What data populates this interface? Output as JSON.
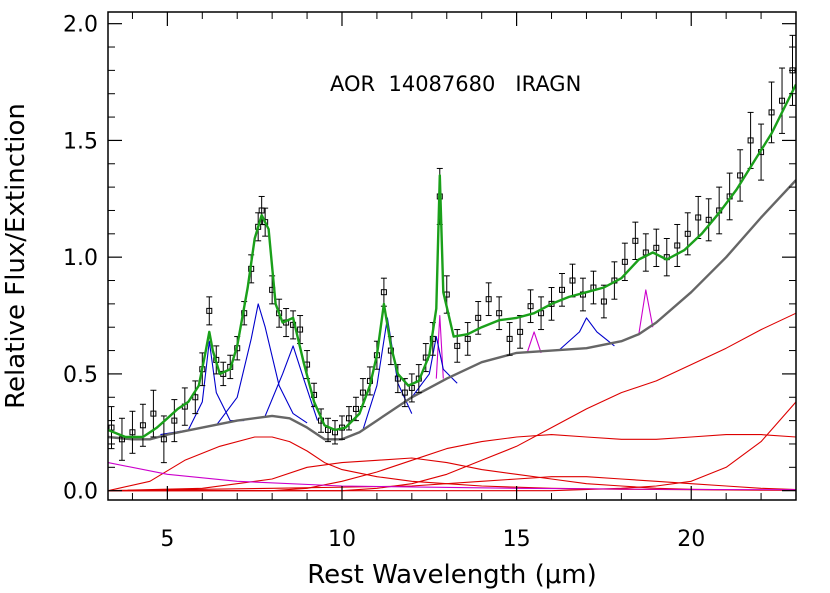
{
  "chart_data": {
    "type": "line",
    "title": "",
    "annotation": "AOR  14087680   IRAGN",
    "xlabel": "Rest Wavelength (μm)",
    "ylabel": "Relative Flux/Extinction",
    "xlim": [
      3.3,
      23.0
    ],
    "ylim": [
      -0.04,
      2.05
    ],
    "x_ticks": [
      5,
      10,
      15,
      20
    ],
    "x_tick_labels": [
      "5",
      "10",
      "15",
      "20"
    ],
    "y_ticks": [
      0.0,
      0.5,
      1.0,
      1.5,
      2.0
    ],
    "y_tick_labels": [
      "0.0",
      "0.5",
      "1.0",
      "1.5",
      "2.0"
    ],
    "grid": false,
    "legend": "none",
    "colors": {
      "data": "#000000",
      "model": "#1aa01a",
      "continuum_total": "#666666",
      "pah_features": "#0000cc",
      "lines": "#cc00cc",
      "dust_components": "#dd0000"
    },
    "series": [
      {
        "role": "model",
        "x": [
          3.3,
          3.8,
          4.3,
          4.7,
          5.0,
          5.3,
          5.6,
          5.9,
          6.1,
          6.2,
          6.3,
          6.5,
          6.8,
          7.0,
          7.3,
          7.5,
          7.7,
          7.9,
          8.1,
          8.3,
          8.6,
          8.9,
          9.2,
          9.5,
          9.8,
          10.1,
          10.5,
          10.8,
          11.0,
          11.2,
          11.4,
          11.6,
          11.9,
          12.2,
          12.5,
          12.7,
          12.8,
          12.9,
          13.2,
          13.6,
          14.0,
          14.5,
          15.0,
          15.5,
          16.0,
          16.5,
          17.0,
          17.5,
          18.0,
          18.5,
          18.9,
          19.3,
          19.8,
          20.3,
          20.8,
          21.3,
          21.8,
          22.3,
          22.7,
          23.0
        ],
        "y": [
          0.26,
          0.23,
          0.23,
          0.27,
          0.31,
          0.35,
          0.38,
          0.45,
          0.6,
          0.68,
          0.6,
          0.5,
          0.52,
          0.62,
          0.87,
          1.08,
          1.18,
          1.12,
          0.8,
          0.72,
          0.74,
          0.55,
          0.38,
          0.28,
          0.26,
          0.27,
          0.33,
          0.45,
          0.58,
          0.8,
          0.62,
          0.5,
          0.45,
          0.47,
          0.58,
          0.78,
          1.35,
          0.85,
          0.66,
          0.67,
          0.7,
          0.73,
          0.74,
          0.76,
          0.8,
          0.83,
          0.85,
          0.87,
          0.91,
          0.99,
          1.02,
          0.99,
          1.03,
          1.1,
          1.19,
          1.29,
          1.41,
          1.53,
          1.65,
          1.74
        ]
      },
      {
        "role": "continuum_total",
        "x": [
          3.3,
          4.0,
          4.5,
          5.0,
          6.0,
          7.0,
          8.0,
          8.5,
          9.0,
          9.5,
          10.0,
          10.5,
          11.0,
          12.0,
          13.0,
          14.0,
          15.0,
          16.0,
          17.0,
          18.0,
          18.5,
          19.0,
          20.0,
          21.0,
          22.0,
          23.0
        ],
        "y": [
          0.23,
          0.22,
          0.22,
          0.24,
          0.27,
          0.3,
          0.32,
          0.31,
          0.27,
          0.22,
          0.22,
          0.25,
          0.3,
          0.4,
          0.48,
          0.55,
          0.59,
          0.6,
          0.61,
          0.64,
          0.67,
          0.72,
          0.85,
          1.0,
          1.17,
          1.33
        ]
      },
      {
        "role": "pah_profile",
        "name": "6.2 um",
        "x": [
          4.8,
          5.6,
          6.0,
          6.2,
          6.4,
          6.8,
          7.2
        ],
        "y": [
          0.24,
          0.26,
          0.38,
          0.64,
          0.42,
          0.3,
          0.3
        ]
      },
      {
        "role": "pah_profile",
        "name": "7.7 um",
        "x": [
          6.4,
          7.0,
          7.4,
          7.6,
          7.8,
          8.2,
          8.6,
          9.0
        ],
        "y": [
          0.28,
          0.4,
          0.65,
          0.8,
          0.7,
          0.45,
          0.33,
          0.29
        ]
      },
      {
        "role": "pah_profile",
        "name": "8.6 um",
        "x": [
          7.8,
          8.3,
          8.6,
          8.9,
          9.3
        ],
        "y": [
          0.32,
          0.5,
          0.62,
          0.48,
          0.3
        ]
      },
      {
        "role": "pah_profile",
        "name": "11.3 um",
        "x": [
          10.6,
          11.0,
          11.3,
          11.6,
          12.0
        ],
        "y": [
          0.26,
          0.45,
          0.74,
          0.46,
          0.33
        ]
      },
      {
        "role": "pah_profile",
        "name": "12.7 um",
        "x": [
          12.0,
          12.5,
          12.7,
          12.9,
          13.3
        ],
        "y": [
          0.4,
          0.5,
          0.66,
          0.52,
          0.46
        ]
      },
      {
        "role": "pah_profile",
        "name": "17 um",
        "x": [
          16.2,
          16.8,
          17.0,
          17.3,
          17.8
        ],
        "y": [
          0.6,
          0.68,
          0.74,
          0.68,
          0.62
        ]
      },
      {
        "role": "line",
        "name": "12.8 um line",
        "x": [
          12.7,
          12.8,
          12.9
        ],
        "y": [
          0.48,
          0.75,
          0.48
        ]
      },
      {
        "role": "line",
        "name": "15.5 um line",
        "x": [
          15.3,
          15.5,
          15.7
        ],
        "y": [
          0.59,
          0.68,
          0.59
        ]
      },
      {
        "role": "line",
        "name": "18.7 um line",
        "x": [
          18.5,
          18.7,
          18.9
        ],
        "y": [
          0.67,
          0.86,
          0.7
        ]
      },
      {
        "role": "line",
        "name": "stellar",
        "x": [
          3.3,
          5.0,
          7.0,
          10.0,
          15.0,
          20.0,
          23.0
        ],
        "y": [
          0.12,
          0.07,
          0.04,
          0.02,
          0.01,
          0.005,
          0.004
        ]
      },
      {
        "role": "dust_component",
        "x": [
          3.3,
          4.5,
          5.5,
          6.5,
          7.5,
          8.0,
          8.5,
          9.0,
          9.5,
          10.0,
          11.0,
          12.0,
          13.0,
          14.0,
          15.0,
          16.0,
          17.0,
          18.0,
          19.0,
          20.0,
          21.0,
          22.0,
          23.0
        ],
        "y": [
          0.0,
          0.04,
          0.13,
          0.19,
          0.23,
          0.23,
          0.21,
          0.17,
          0.12,
          0.09,
          0.06,
          0.04,
          0.03,
          0.02,
          0.015,
          0.01,
          0.008,
          0.006,
          0.005,
          0.004,
          0.003,
          0.002,
          0.002
        ]
      },
      {
        "role": "dust_component",
        "x": [
          3.3,
          6.0,
          8.0,
          9.0,
          10.0,
          11.0,
          12.0,
          13.0,
          14.0,
          15.0,
          16.0,
          17.0,
          18.0,
          19.0,
          20.0,
          21.0,
          22.0,
          23.0
        ],
        "y": [
          0.0,
          0.01,
          0.05,
          0.1,
          0.12,
          0.13,
          0.14,
          0.12,
          0.09,
          0.07,
          0.05,
          0.03,
          0.02,
          0.01,
          0.006,
          0.004,
          0.003,
          0.002
        ]
      },
      {
        "role": "dust_component",
        "x": [
          3.3,
          8.0,
          9.0,
          10.0,
          11.0,
          12.0,
          13.0,
          14.0,
          15.0,
          16.0,
          17.0,
          18.0,
          19.0,
          20.0,
          21.0,
          22.0,
          23.0
        ],
        "y": [
          0.0,
          0.0,
          0.01,
          0.04,
          0.08,
          0.13,
          0.18,
          0.21,
          0.23,
          0.24,
          0.23,
          0.22,
          0.22,
          0.23,
          0.24,
          0.24,
          0.23
        ]
      },
      {
        "role": "dust_component",
        "x": [
          3.3,
          8.0,
          10.0,
          11.0,
          12.0,
          13.0,
          14.0,
          15.0,
          16.0,
          17.0,
          18.0,
          19.0,
          20.0,
          21.0,
          22.0,
          23.0
        ],
        "y": [
          0.0,
          0.0,
          0.0,
          0.01,
          0.03,
          0.07,
          0.13,
          0.19,
          0.27,
          0.35,
          0.42,
          0.47,
          0.54,
          0.61,
          0.69,
          0.76
        ]
      },
      {
        "role": "dust_component",
        "x": [
          3.3,
          12.0,
          14.0,
          16.0,
          18.0,
          19.0,
          20.0,
          21.0,
          22.0,
          23.0
        ],
        "y": [
          0.0,
          0.0,
          0.0,
          0.0,
          0.01,
          0.02,
          0.04,
          0.1,
          0.21,
          0.38
        ]
      },
      {
        "role": "dust_component",
        "x": [
          3.3,
          8.0,
          12.0,
          14.0,
          15.0,
          16.0,
          17.0,
          18.0,
          19.0,
          20.0,
          21.0,
          22.0,
          23.0
        ],
        "y": [
          0.0,
          0.01,
          0.02,
          0.04,
          0.05,
          0.06,
          0.06,
          0.05,
          0.04,
          0.03,
          0.02,
          0.01,
          0.005
        ]
      }
    ],
    "data_points": {
      "x": [
        3.4,
        3.7,
        4.0,
        4.3,
        4.6,
        4.9,
        5.2,
        5.5,
        5.8,
        6.0,
        6.2,
        6.4,
        6.6,
        6.8,
        7.0,
        7.2,
        7.4,
        7.6,
        7.7,
        7.8,
        8.0,
        8.2,
        8.4,
        8.6,
        8.8,
        9.0,
        9.2,
        9.4,
        9.6,
        9.8,
        10.0,
        10.2,
        10.4,
        10.6,
        10.8,
        11.0,
        11.2,
        11.4,
        11.6,
        11.8,
        12.0,
        12.2,
        12.4,
        12.6,
        12.8,
        13.0,
        13.3,
        13.6,
        13.9,
        14.2,
        14.5,
        14.8,
        15.1,
        15.4,
        15.7,
        16.0,
        16.3,
        16.6,
        16.9,
        17.2,
        17.5,
        17.8,
        18.1,
        18.4,
        18.7,
        19.0,
        19.3,
        19.6,
        19.9,
        20.2,
        20.5,
        20.8,
        21.1,
        21.4,
        21.7,
        22.0,
        22.3,
        22.6,
        22.9
      ],
      "y": [
        0.27,
        0.22,
        0.25,
        0.28,
        0.33,
        0.22,
        0.3,
        0.36,
        0.4,
        0.52,
        0.77,
        0.56,
        0.5,
        0.53,
        0.61,
        0.76,
        0.95,
        1.13,
        1.2,
        1.15,
        0.86,
        0.76,
        0.72,
        0.71,
        0.69,
        0.54,
        0.41,
        0.3,
        0.26,
        0.25,
        0.27,
        0.31,
        0.35,
        0.42,
        0.47,
        0.58,
        0.85,
        0.6,
        0.48,
        0.42,
        0.44,
        0.48,
        0.57,
        0.65,
        1.26,
        0.84,
        0.62,
        0.65,
        0.74,
        0.82,
        0.76,
        0.65,
        0.68,
        0.79,
        0.76,
        0.8,
        0.86,
        0.9,
        0.84,
        0.87,
        0.81,
        0.9,
        0.98,
        1.07,
        1.02,
        1.04,
        1.0,
        1.05,
        1.1,
        1.17,
        1.16,
        1.2,
        1.26,
        1.35,
        1.5,
        1.45,
        1.62,
        1.67,
        1.8
      ],
      "err": [
        0.09,
        0.09,
        0.09,
        0.09,
        0.1,
        0.1,
        0.09,
        0.08,
        0.07,
        0.07,
        0.06,
        0.06,
        0.05,
        0.05,
        0.05,
        0.05,
        0.06,
        0.06,
        0.06,
        0.06,
        0.06,
        0.06,
        0.06,
        0.06,
        0.06,
        0.06,
        0.05,
        0.05,
        0.05,
        0.05,
        0.05,
        0.05,
        0.05,
        0.06,
        0.06,
        0.06,
        0.06,
        0.06,
        0.06,
        0.06,
        0.06,
        0.06,
        0.06,
        0.07,
        0.12,
        0.08,
        0.07,
        0.07,
        0.07,
        0.07,
        0.07,
        0.07,
        0.07,
        0.07,
        0.07,
        0.07,
        0.07,
        0.07,
        0.07,
        0.07,
        0.07,
        0.08,
        0.08,
        0.08,
        0.08,
        0.08,
        0.08,
        0.09,
        0.09,
        0.09,
        0.09,
        0.1,
        0.1,
        0.11,
        0.12,
        0.12,
        0.13,
        0.14,
        0.15
      ]
    }
  }
}
